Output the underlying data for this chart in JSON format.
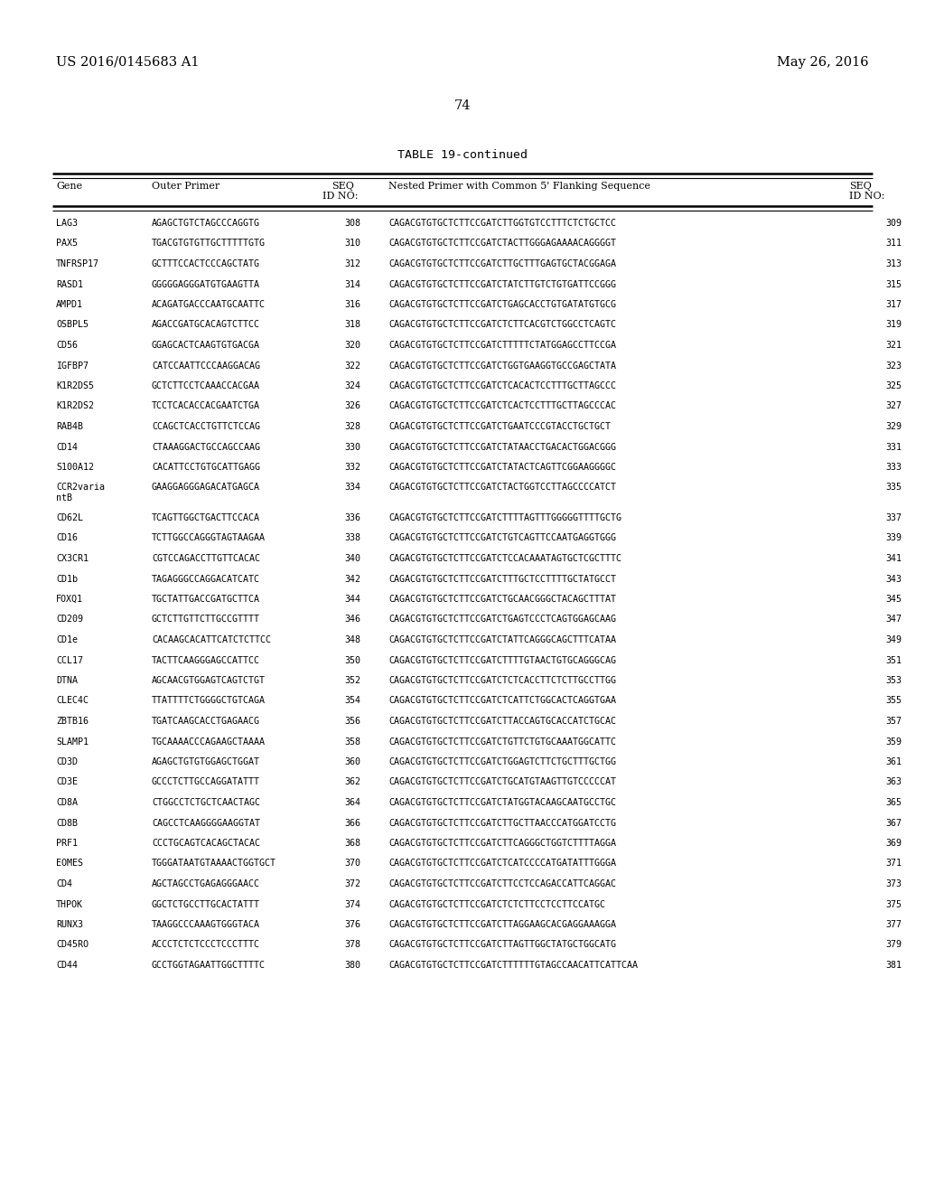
{
  "header_left": "US 2016/0145683 A1",
  "header_right": "May 26, 2016",
  "page_number": "74",
  "table_title": "TABLE 19-continued",
  "rows": [
    [
      "LAG3",
      "AGAGCTGTCTAGCCCAGGTG",
      "308",
      "CAGACGTGTGCTCTTCCGATCTTGGTGTCCTTTCTCTGCTCC",
      "309"
    ],
    [
      "PAX5",
      "TGACGTGTGTTGCTTTTTGTG",
      "310",
      "CAGACGTGTGCTCTTCCGATCTACTTGGGAGAAAACAGGGGT",
      "311"
    ],
    [
      "TNFRSP17",
      "GCTTTCCACTCCCAGCTATG",
      "312",
      "CAGACGTGTGCTCTTCCGATCTTGCTTTGAGTGCTACGGAGA",
      "313"
    ],
    [
      "RASD1",
      "GGGGGAGGGATGTGAAGTTA",
      "314",
      "CAGACGTGTGCTCTTCCGATCTATCTTGTCTGTGATTCCGGG",
      "315"
    ],
    [
      "AMPD1",
      "ACAGATGACCCAATGCAATTC",
      "316",
      "CAGACGTGTGCTCTTCCGATCTGAGCACCTGTGATATGTGCG",
      "317"
    ],
    [
      "OSBPL5",
      "AGACCGATGCACAGTCTTCC",
      "318",
      "CAGACGTGTGCTCTTCCGATCTCTTCACGTCTGGCCTCAGTC",
      "319"
    ],
    [
      "CD56",
      "GGAGCACTCAAGTGTGACGA",
      "320",
      "CAGACGTGTGCTCTTCCGATCTTTTTCTATGGAGCCTTCCGA",
      "321"
    ],
    [
      "IGFBP7",
      "CATCCAATTCCCAAGGACAG",
      "322",
      "CAGACGTGTGCTCTTCCGATCTGGTGAAGGTGCCGAGCTATA",
      "323"
    ],
    [
      "K1R2DS5",
      "GCTCTTCCTCAAACCACGAA",
      "324",
      "CAGACGTGTGCTCTTCCGATCTCACACTCCTTTGCTTAGCCC",
      "325"
    ],
    [
      "K1R2DS2",
      "TCCTCACACCACGAATCTGA",
      "326",
      "CAGACGTGTGCTCTTCCGATCTCACTCCTTTGCTTAGCCCAC",
      "327"
    ],
    [
      "RAB4B",
      "CCAGCTCACCTGTTCTCCAG",
      "328",
      "CAGACGTGTGCTCTTCCGATCTGAATCCCGTACCTGCTGCT",
      "329"
    ],
    [
      "CD14",
      "CTAAAGGACTGCCAGCCAAG",
      "330",
      "CAGACGTGTGCTCTTCCGATCTATAACCTGACACTGGACGGG",
      "331"
    ],
    [
      "S100A12",
      "CACATTCCTGTGCATTGAGG",
      "332",
      "CAGACGTGTGCTCTTCCGATCTATACTCAGTTCGGAAGGGGC",
      "333"
    ],
    [
      "CCR2varia\nntB",
      "GAAGGAGGGAGACATGAGCA",
      "334",
      "CAGACGTGTGCTCTTCCGATCTACTGGTCCTTAGCCCCATCT",
      "335"
    ],
    [
      "CD62L",
      "TCAGTTGGCTGACTTCCACA",
      "336",
      "CAGACGTGTGCTCTTCCGATCTTTTAGTTTGGGGGTTTTGCTG",
      "337"
    ],
    [
      "CD16",
      "TCTTGGCCAGGGTAGTAAGAA",
      "338",
      "CAGACGTGTGCTCTTCCGATCTGTCAGTTCCAATGAGGTGGG",
      "339"
    ],
    [
      "CX3CR1",
      "CGTCCAGACCTTGTTCACAC",
      "340",
      "CAGACGTGTGCTCTTCCGATCTCCACAAATAGTGCTCGCTTTC",
      "341"
    ],
    [
      "CD1b",
      "TAGAGGGCCAGGACATCATC",
      "342",
      "CAGACGTGTGCTCTTCCGATCTTTGCTCCTTTTGCTATGCCT",
      "343"
    ],
    [
      "FOXQ1",
      "TGCTATTGACCGATGCTTCA",
      "344",
      "CAGACGTGTGCTCTTCCGATCTGCAACGGGCTACAGCTTTAT",
      "345"
    ],
    [
      "CD209",
      "GCTCTTGTTCTTGCCGTTTT",
      "346",
      "CAGACGTGTGCTCTTCCGATCTGAGTCCCTCAGTGGAGCAAG",
      "347"
    ],
    [
      "CD1e",
      "CACAAGCACATTCATCTCTTCC",
      "348",
      "CAGACGTGTGCTCTTCCGATCTATTCAGGGCAGCTTTCATAA",
      "349"
    ],
    [
      "CCL17",
      "TACTTCAAGGGAGCCATTCC",
      "350",
      "CAGACGTGTGCTCTTCCGATCTTTTGTAACTGTGCAGGGCAG",
      "351"
    ],
    [
      "DTNA",
      "AGCAACGTGGAGTCAGTCTGT",
      "352",
      "CAGACGTGTGCTCTTCCGATCTCTCACCTTCTCTTGCCTTGG",
      "353"
    ],
    [
      "CLEC4C",
      "TTATTTTCTGGGGCTGTCAGA",
      "354",
      "CAGACGTGTGCTCTTCCGATCTCATTCTGGCACTCAGGTGAA",
      "355"
    ],
    [
      "ZBTB16",
      "TGATCAAGCACCTGAGAACG",
      "356",
      "CAGACGTGTGCTCTTCCGATCTTACCAGTGCACCATCTGCAC",
      "357"
    ],
    [
      "SLAMP1",
      "TGCAAAACCCAGAAGCTAAAA",
      "358",
      "CAGACGTGTGCTCTTCCGATCTGTTCTGTGCAAATGGCATTC",
      "359"
    ],
    [
      "CD3D",
      "AGAGCTGTGTGGAGCTGGAT",
      "360",
      "CAGACGTGTGCTCTTCCGATCTGGAGTCTTCTGCTTTGCTGG",
      "361"
    ],
    [
      "CD3E",
      "GCCCTCTTGCCAGGATATTT",
      "362",
      "CAGACGTGTGCTCTTCCGATCTGCATGTAAGTTGTCCCCCAT",
      "363"
    ],
    [
      "CD8A",
      "CTGGCCTCTGCTCAACTAGC",
      "364",
      "CAGACGTGTGCTCTTCCGATCTATGGTACAAGCAATGCCTGC",
      "365"
    ],
    [
      "CD8B",
      "CAGCCTCAAGGGGAAGGTAT",
      "366",
      "CAGACGTGTGCTCTTCCGATCTTGCTTAACCCATGGATCCTG",
      "367"
    ],
    [
      "PRF1",
      "CCCTGCAGTCACAGCTACAC",
      "368",
      "CAGACGTGTGCTCTTCCGATCTTCAGGGCTGGTCTTTTAGGA",
      "369"
    ],
    [
      "EOMES",
      "TGGGATAATGTAAAACTGGTGCT",
      "370",
      "CAGACGTGTGCTCTTCCGATCTCATCCCCATGATATTTGGGA",
      "371"
    ],
    [
      "CD4",
      "AGCTAGCCTGAGAGGGAACC",
      "372",
      "CAGACGTGTGCTCTTCCGATCTTCCTCCAGACCATTCAGGAC",
      "373"
    ],
    [
      "THPOK",
      "GGCTCTGCCTTGCACTATTT",
      "374",
      "CAGACGTGTGCTCTTCCGATCTCTCTTCCTCCTTCCATGC",
      "375"
    ],
    [
      "RUNX3",
      "TAAGGCCCAAAGTGGGTACA",
      "376",
      "CAGACGTGTGCTCTTCCGATCTTAGGAAGCACGAGGAAAGGA",
      "377"
    ],
    [
      "CD45RO",
      "ACCCTCTCTCCCTCCCTTTC",
      "378",
      "CAGACGTGTGCTCTTCCGATCTTAGTTGGCTATGCTGGCATG",
      "379"
    ],
    [
      "CD44",
      "GCCTGGTAGAATTGGCTTTTC",
      "380",
      "CAGACGTGTGCTCTTCCGATCTTTTTTGTAGCCAACATTCATTCAA",
      "381"
    ]
  ],
  "background_color": "#ffffff",
  "text_color": "#000000",
  "fs_page_header": 10.5,
  "fs_title": 9.5,
  "fs_col_header": 8.0,
  "fs_body": 7.2
}
